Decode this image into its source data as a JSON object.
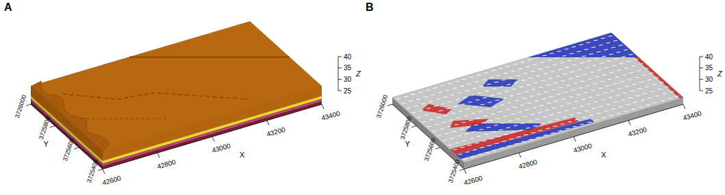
{
  "chart_data": [
    {
      "type": "block3d",
      "title": "A",
      "x_label": "X",
      "y_label": "Y",
      "z_label": "Z",
      "xlim": [
        42600,
        43400
      ],
      "ylim": [
        3725400,
        3726000
      ],
      "zlim": [
        25,
        40
      ],
      "xticks": [
        42600,
        42800,
        43000,
        43200,
        43400
      ],
      "yticks": [
        3725400,
        3725600,
        3725800,
        3726000
      ],
      "zticks": [
        25,
        30,
        35,
        40
      ]
    },
    {
      "type": "vector_surface",
      "title": "B",
      "x_label": "X",
      "y_label": "Y",
      "z_label": "Z",
      "xlim": [
        42600,
        43400
      ],
      "ylim": [
        3725400,
        3726000
      ],
      "zlim": [
        25,
        40
      ],
      "xticks": [
        42600,
        42800,
        43000,
        43200,
        43400
      ],
      "yticks": [
        3725400,
        3725600,
        3725800,
        3726000
      ],
      "zticks": [
        25,
        30,
        35,
        40
      ]
    }
  ]
}
